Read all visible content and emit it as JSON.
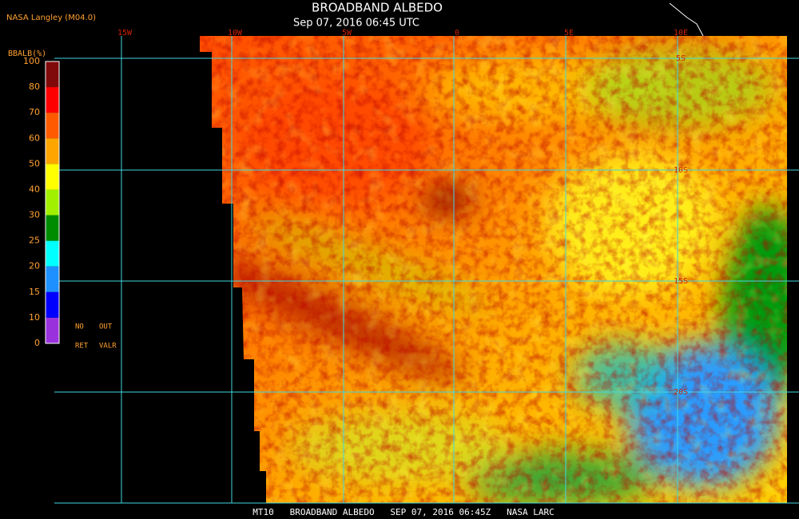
{
  "header": {
    "title": "BROADBAND ALBEDO",
    "subtitle": "Sep 07, 2016 06:45 UTC",
    "source": "NASA Langley (M04.0)"
  },
  "colorbar": {
    "label": "BBALB(%)",
    "ticks": [
      100,
      80,
      70,
      60,
      50,
      40,
      30,
      25,
      20,
      15,
      10,
      0
    ],
    "colors": [
      "#800a0a",
      "#ff0000",
      "#ff5a00",
      "#ffa500",
      "#ffff00",
      "#a0f000",
      "#008c00",
      "#00ffff",
      "#1e90ff",
      "#0000ff",
      "#9932dc"
    ],
    "notes": [
      "NO",
      "OUT",
      "RET",
      "VALR"
    ]
  },
  "grid": {
    "longitudes": [
      "15W",
      "10W",
      "5W",
      "0",
      "5E",
      "10E"
    ],
    "latitudes": [
      "5S",
      "10S",
      "15S",
      "20S"
    ]
  },
  "footer": "MT10   BROADBAND ALBEDO   SEP 07, 2016 06:45Z   NASA LARC"
}
